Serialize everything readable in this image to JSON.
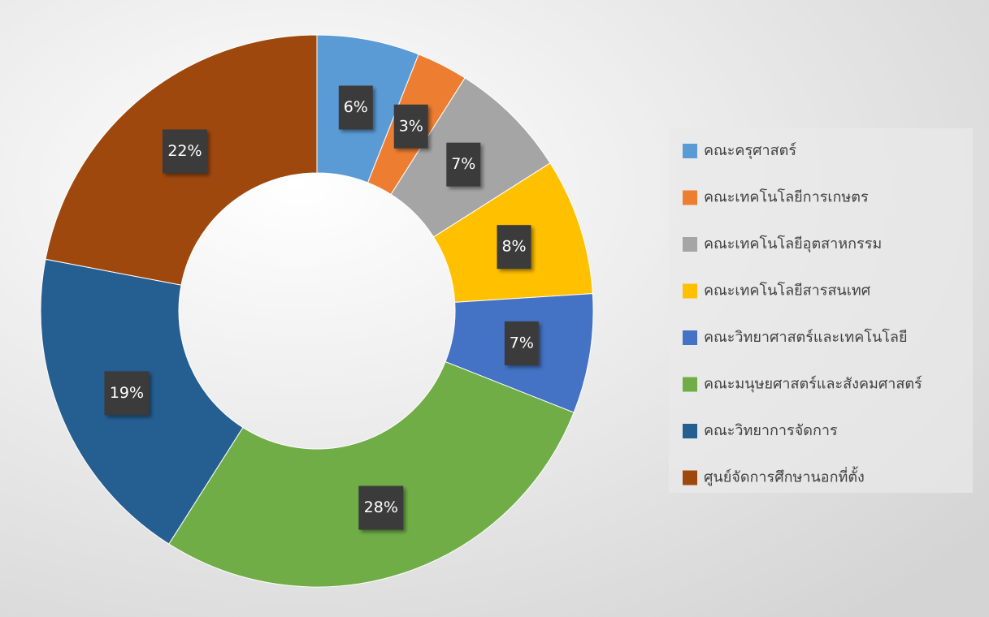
{
  "chart_data": {
    "type": "donut",
    "categories": [
      "คณะครุศาสตร์",
      "คณะเทคโนโลยีการเกษตร",
      "คณะเทคโนโลยีอุตสาหกรรม",
      "คณะเทคโนโลยีสารสนเทศ",
      "คณะวิทยาศาสตร์และเทคโนโลยี",
      "คณะมนุษยศาสตร์และสังคมศาสตร์",
      "คณะวิทยาการจัดการ",
      "ศูนย์จัดการศึกษานอกที่ตั้ง"
    ],
    "values": [
      6,
      3,
      7,
      8,
      7,
      28,
      19,
      22
    ],
    "value_labels": [
      "6%",
      "3%",
      "7%",
      "8%",
      "7%",
      "28%",
      "19%",
      "22%"
    ],
    "colors": [
      "#5b9bd5",
      "#ed7d31",
      "#a5a5a5",
      "#ffc000",
      "#4472c4",
      "#70ad47",
      "#255e91",
      "#9e480e"
    ],
    "legend": "right"
  }
}
